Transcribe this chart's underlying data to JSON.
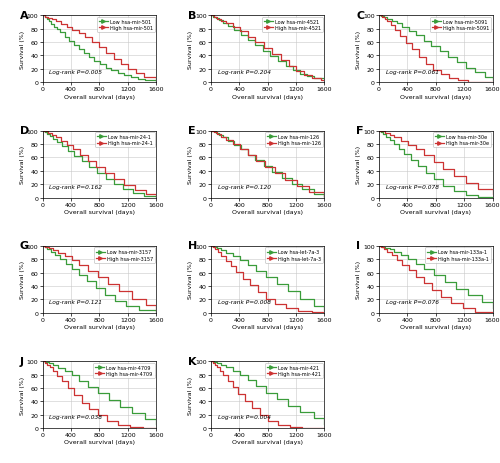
{
  "panels": [
    {
      "label": "A",
      "mirna": "hsa-mir-501",
      "pvalue": "P=0.005",
      "low_x": [
        0,
        30,
        60,
        90,
        120,
        160,
        200,
        250,
        310,
        370,
        440,
        510,
        580,
        650,
        730,
        810,
        890,
        970,
        1060,
        1150,
        1240,
        1340,
        1440,
        1600
      ],
      "low_y": [
        100,
        97,
        94,
        91,
        87,
        83,
        80,
        75,
        68,
        62,
        56,
        50,
        44,
        38,
        32,
        27,
        22,
        18,
        14,
        11,
        8,
        5,
        3,
        0
      ],
      "high_x": [
        0,
        40,
        80,
        130,
        190,
        260,
        340,
        420,
        510,
        600,
        700,
        800,
        900,
        1000,
        1100,
        1200,
        1310,
        1430,
        1600
      ],
      "high_y": [
        100,
        98,
        96,
        94,
        91,
        87,
        83,
        78,
        73,
        67,
        60,
        52,
        44,
        35,
        27,
        20,
        14,
        8,
        5
      ]
    },
    {
      "label": "B",
      "mirna": "hsa-mir-4521",
      "pvalue": "P=0.204",
      "low_x": [
        0,
        30,
        70,
        120,
        180,
        250,
        330,
        420,
        520,
        620,
        730,
        840,
        950,
        1060,
        1160,
        1260,
        1360,
        1460,
        1600
      ],
      "low_y": [
        100,
        98,
        96,
        93,
        89,
        84,
        78,
        71,
        63,
        55,
        47,
        39,
        31,
        24,
        18,
        13,
        9,
        6,
        6
      ],
      "high_x": [
        0,
        40,
        90,
        150,
        220,
        310,
        410,
        520,
        630,
        750,
        870,
        990,
        1100,
        1200,
        1310,
        1430,
        1550,
        1600
      ],
      "high_y": [
        100,
        98,
        95,
        92,
        88,
        83,
        76,
        68,
        60,
        51,
        42,
        33,
        24,
        17,
        11,
        7,
        4,
        4
      ]
    },
    {
      "label": "C",
      "mirna": "hsa-mir-5091",
      "pvalue": "P=0.061",
      "low_x": [
        0,
        30,
        70,
        120,
        180,
        250,
        330,
        420,
        520,
        630,
        740,
        860,
        980,
        1100,
        1220,
        1350,
        1490,
        1600
      ],
      "low_y": [
        100,
        99,
        97,
        95,
        92,
        88,
        83,
        77,
        70,
        62,
        54,
        46,
        38,
        30,
        22,
        15,
        8,
        3
      ],
      "high_x": [
        0,
        40,
        80,
        120,
        170,
        230,
        300,
        380,
        470,
        560,
        660,
        760,
        870,
        990,
        1120,
        1260,
        1600
      ],
      "high_y": [
        100,
        98,
        95,
        91,
        85,
        78,
        69,
        59,
        49,
        38,
        28,
        19,
        12,
        7,
        3,
        1,
        0
      ]
    },
    {
      "label": "D",
      "mirna": "hsa-mir-24-1",
      "pvalue": "P=0.162",
      "low_x": [
        0,
        30,
        60,
        100,
        150,
        210,
        280,
        360,
        450,
        550,
        660,
        770,
        890,
        1010,
        1140,
        1280,
        1430,
        1600
      ],
      "low_y": [
        100,
        98,
        95,
        92,
        88,
        83,
        77,
        70,
        62,
        54,
        46,
        37,
        28,
        20,
        13,
        7,
        3,
        0
      ],
      "high_x": [
        0,
        40,
        80,
        130,
        190,
        260,
        340,
        430,
        530,
        640,
        760,
        880,
        1010,
        1150,
        1300,
        1460,
        1600
      ],
      "high_y": [
        100,
        99,
        97,
        94,
        90,
        85,
        79,
        72,
        64,
        55,
        46,
        37,
        28,
        19,
        11,
        5,
        2
      ]
    },
    {
      "label": "E",
      "mirna": "hsa-mir-126",
      "pvalue": "P=0.120",
      "low_x": [
        0,
        30,
        70,
        120,
        180,
        250,
        330,
        420,
        520,
        630,
        750,
        870,
        1000,
        1140,
        1290,
        1450,
        1600
      ],
      "low_y": [
        100,
        99,
        97,
        94,
        90,
        85,
        79,
        72,
        64,
        56,
        47,
        38,
        29,
        21,
        13,
        6,
        0
      ],
      "high_x": [
        0,
        40,
        90,
        150,
        220,
        310,
        410,
        520,
        640,
        770,
        900,
        1050,
        1210,
        1380,
        1600
      ],
      "high_y": [
        100,
        98,
        95,
        91,
        86,
        80,
        73,
        64,
        55,
        46,
        36,
        26,
        17,
        9,
        3
      ]
    },
    {
      "label": "F",
      "mirna": "hsa-mir-30e",
      "pvalue": "P=0.078",
      "low_x": [
        0,
        30,
        60,
        100,
        150,
        210,
        280,
        360,
        450,
        550,
        660,
        780,
        910,
        1060,
        1220,
        1400,
        1600
      ],
      "low_y": [
        100,
        98,
        95,
        91,
        86,
        80,
        73,
        65,
        56,
        47,
        37,
        27,
        18,
        10,
        4,
        1,
        0
      ],
      "high_x": [
        0,
        40,
        90,
        150,
        220,
        310,
        410,
        520,
        640,
        770,
        910,
        1060,
        1220,
        1400,
        1600
      ],
      "high_y": [
        100,
        99,
        97,
        94,
        90,
        85,
        79,
        72,
        63,
        53,
        43,
        32,
        22,
        13,
        5
      ]
    },
    {
      "label": "G",
      "mirna": "hsa-mir-3157",
      "pvalue": "P=0.121",
      "low_x": [
        0,
        30,
        70,
        120,
        180,
        250,
        330,
        420,
        520,
        630,
        750,
        880,
        1020,
        1180,
        1360,
        1600
      ],
      "low_y": [
        100,
        98,
        95,
        91,
        86,
        80,
        73,
        65,
        56,
        47,
        37,
        27,
        18,
        10,
        4,
        0
      ],
      "high_x": [
        0,
        40,
        90,
        150,
        220,
        310,
        410,
        520,
        640,
        780,
        920,
        1080,
        1260,
        1460,
        1600
      ],
      "high_y": [
        100,
        99,
        97,
        94,
        90,
        85,
        79,
        72,
        63,
        53,
        43,
        32,
        21,
        12,
        5
      ]
    },
    {
      "label": "H",
      "mirna": "hsa-let-7a-3",
      "pvalue": "P=0.008",
      "low_x": [
        0,
        40,
        90,
        150,
        220,
        310,
        410,
        520,
        640,
        780,
        930,
        1090,
        1260,
        1450,
        1600
      ],
      "low_y": [
        100,
        99,
        97,
        94,
        90,
        85,
        79,
        72,
        63,
        53,
        43,
        32,
        21,
        11,
        4
      ],
      "high_x": [
        0,
        30,
        60,
        100,
        150,
        210,
        280,
        360,
        450,
        550,
        660,
        780,
        910,
        1060,
        1230,
        1420,
        1600
      ],
      "high_y": [
        100,
        98,
        95,
        91,
        85,
        78,
        70,
        61,
        51,
        41,
        31,
        21,
        13,
        7,
        3,
        1,
        0
      ]
    },
    {
      "label": "I",
      "mirna": "hsa-mir-133a-1",
      "pvalue": "P=0.076",
      "low_x": [
        0,
        40,
        90,
        150,
        220,
        310,
        410,
        520,
        640,
        780,
        930,
        1090,
        1260,
        1450,
        1600
      ],
      "low_y": [
        100,
        99,
        97,
        95,
        91,
        86,
        80,
        73,
        65,
        56,
        46,
        36,
        26,
        16,
        8
      ],
      "high_x": [
        0,
        30,
        70,
        120,
        180,
        250,
        330,
        420,
        520,
        630,
        750,
        880,
        1020,
        1180,
        1360,
        1600
      ],
      "high_y": [
        100,
        98,
        95,
        91,
        86,
        79,
        72,
        64,
        54,
        44,
        34,
        24,
        15,
        7,
        2,
        0
      ]
    },
    {
      "label": "J",
      "mirna": "hsa-mir-4709",
      "pvalue": "P=0.038",
      "low_x": [
        0,
        40,
        90,
        150,
        220,
        310,
        410,
        520,
        640,
        780,
        930,
        1090,
        1260,
        1450,
        1600
      ],
      "low_y": [
        100,
        99,
        97,
        94,
        90,
        85,
        79,
        71,
        62,
        52,
        42,
        32,
        22,
        13,
        6
      ],
      "high_x": [
        0,
        30,
        60,
        100,
        150,
        210,
        280,
        360,
        450,
        550,
        660,
        780,
        910,
        1060,
        1230,
        1420,
        1600
      ],
      "high_y": [
        100,
        98,
        95,
        91,
        85,
        78,
        70,
        60,
        49,
        38,
        28,
        19,
        11,
        5,
        2,
        1,
        0
      ]
    },
    {
      "label": "K",
      "mirna": "hsa-mir-421",
      "pvalue": "P=0.004",
      "low_x": [
        0,
        40,
        90,
        150,
        220,
        310,
        410,
        520,
        640,
        780,
        930,
        1090,
        1260,
        1450,
        1600
      ],
      "low_y": [
        100,
        99,
        97,
        95,
        91,
        86,
        80,
        72,
        63,
        53,
        43,
        33,
        24,
        15,
        7
      ],
      "high_x": [
        0,
        30,
        60,
        90,
        130,
        180,
        240,
        310,
        390,
        480,
        580,
        690,
        810,
        950,
        1110,
        1290,
        1490,
        1600
      ],
      "high_y": [
        100,
        98,
        95,
        91,
        86,
        79,
        71,
        62,
        51,
        40,
        30,
        20,
        11,
        5,
        2,
        1,
        0,
        0
      ]
    }
  ],
  "low_color": "#3a9c3a",
  "high_color": "#cc3333",
  "grid_color": "#c8c8c8",
  "bg_color": "#ffffff",
  "xlabel": "Overall survival (days)",
  "ylabel": "Survival (%)",
  "xlim": [
    0,
    1600
  ],
  "ylim": [
    0,
    100
  ],
  "xticks": [
    0,
    400,
    800,
    1200,
    1600
  ],
  "yticks": [
    0,
    20,
    40,
    60,
    80,
    100
  ]
}
